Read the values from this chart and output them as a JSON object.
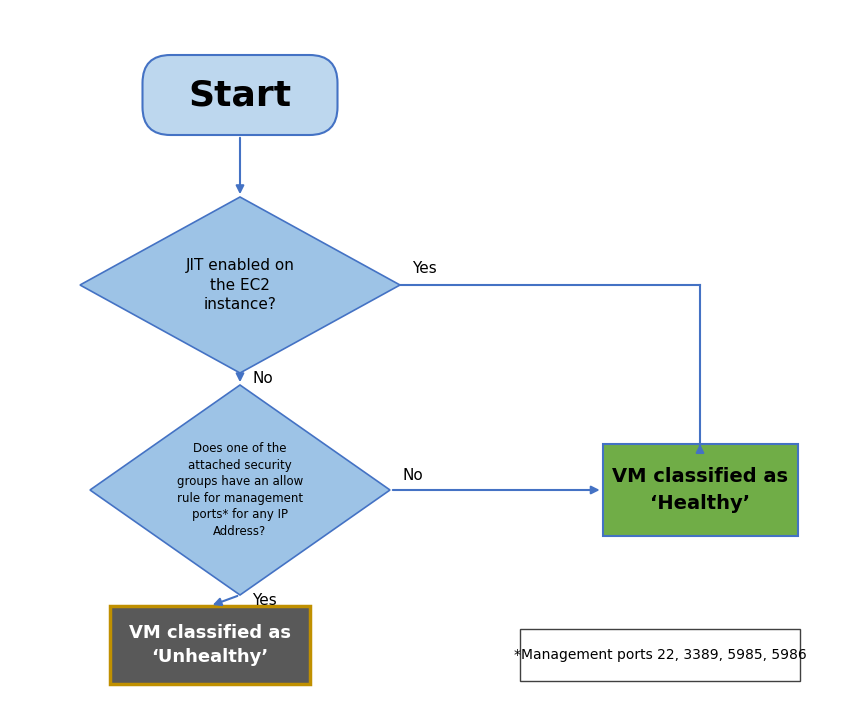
{
  "bg_color": "#ffffff",
  "arrow_color": "#4472C4",
  "diamond_color": "#9DC3E6",
  "diamond_edge_color": "#4472C4",
  "start_box_color": "#BDD7EE",
  "start_box_edge_color": "#4472C4",
  "healthy_box_color": "#70AD47",
  "healthy_box_edge_color": "#4472C4",
  "unhealthy_box_color": "#595959",
  "unhealthy_box_edge_color": "#C09000",
  "note_box_color": "#ffffff",
  "note_box_edge_color": "#404040",
  "start_text": "Start",
  "diamond1_text": "JIT enabled on\nthe EC2\ninstance?",
  "diamond2_text": "Does one of the\nattached security\ngroups have an allow\nrule for management\nports* for any IP\nAddress?",
  "healthy_text": "VM classified as\n‘Healthy’",
  "unhealthy_text": "VM classified as\n‘Unhealthy’",
  "note_text": "*Management ports 22, 3389, 5985, 5986",
  "yes1_label": "Yes",
  "no1_label": "No",
  "no2_label": "No",
  "yes2_label": "Yes",
  "figsize": [
    8.67,
    7.23
  ],
  "dpi": 100
}
